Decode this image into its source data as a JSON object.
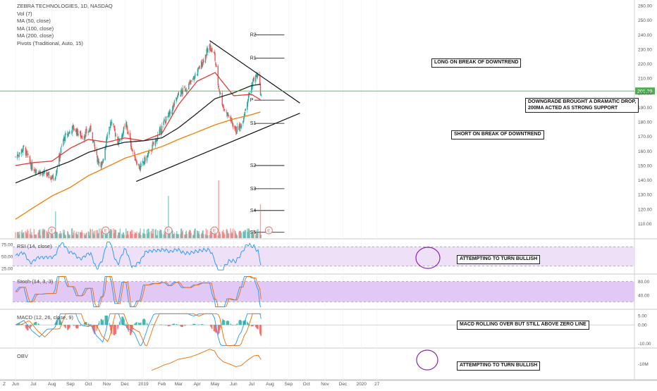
{
  "legend": {
    "symbol": "ZEBRA TECHNOLOGIES, 1D, NASDAQ",
    "vol": "Vol (7)",
    "ma50": "MA (50, close)",
    "ma100": "MA (100, close)",
    "ma200": "MA (200, close)",
    "pivots": "Pivots (Traditional, Auto, 15)"
  },
  "pane_labels": {
    "rsi": "RSI (14, close)",
    "stoch": "Stoch (14, 3, 3)",
    "macd": "MACD (12, 26, close, 9)",
    "obv": "OBV"
  },
  "annotations": {
    "long": "LONG ON BREAK OF DOWNTREND",
    "downgrade_line1": "DOWNGRADE BROUGHT A DRAMATIC DROP,",
    "downgrade_line2": "200MA ACTED AS STRONG SUPPORT",
    "short": "SHORT ON BREAK OF DOWNTREND",
    "rsi_note": "ATTEMPTING TO TURN BULLISH",
    "macd_note": "MACD ROLLING OVER BUT STILL ABOVE ZERO LINE",
    "obv_note": "ATTEMPTING TO TURN BULLISH"
  },
  "price_badge": "201.29",
  "earnings_marker": "E",
  "footer_left": "Z",
  "colors": {
    "up": "#26a69a",
    "down": "#ef5350",
    "ma50": "#e53935",
    "ma100": "#222222",
    "ma200": "#f57c00",
    "rsi": "#2196f3",
    "rsi_band": "#ede0f7",
    "stoch_band": "#e1c8f5",
    "pivot_line": "#000000",
    "current_price": "#4caf50",
    "circle": "#8e24aa"
  },
  "chart_data": {
    "type": "candlestick",
    "x_tick_labels": [
      "Jun",
      "Jul",
      "Aug",
      "Sep",
      "Oct",
      "Nov",
      "Dec",
      "2019",
      "Feb",
      "Mar",
      "Apr",
      "May",
      "Jun",
      "Jul",
      "Aug",
      "Sep",
      "Oct",
      "Nov",
      "Dec",
      "2020",
      "27"
    ],
    "price_axis": {
      "ticks": [
        100,
        110,
        120,
        130,
        140,
        150,
        160,
        170,
        180,
        190,
        200,
        210,
        220,
        230,
        240,
        250,
        260
      ],
      "ylim": [
        100,
        262
      ]
    },
    "current_price": 201.29,
    "pivots": [
      {
        "label": "R2",
        "value": 240
      },
      {
        "label": "R1",
        "value": 224
      },
      {
        "label": "P",
        "value": 195
      },
      {
        "label": "S1",
        "value": 179
      },
      {
        "label": "S2",
        "value": 150
      },
      {
        "label": "S3",
        "value": 134
      },
      {
        "label": "S4",
        "value": 119
      },
      {
        "label": "S5",
        "value": 104
      }
    ],
    "price_anchors": [
      [
        "2018-06-01",
        156
      ],
      [
        "2018-06-15",
        162
      ],
      [
        "2018-06-28",
        149
      ],
      [
        "2018-07-15",
        145
      ],
      [
        "2018-08-05",
        141
      ],
      [
        "2018-08-10",
        150
      ],
      [
        "2018-08-20",
        168
      ],
      [
        "2018-09-05",
        176
      ],
      [
        "2018-09-20",
        170
      ],
      [
        "2018-10-05",
        175
      ],
      [
        "2018-10-15",
        155
      ],
      [
        "2018-10-25",
        150
      ],
      [
        "2018-11-01",
        172
      ],
      [
        "2018-11-08",
        180
      ],
      [
        "2018-11-20",
        166
      ],
      [
        "2018-12-03",
        178
      ],
      [
        "2018-12-15",
        158
      ],
      [
        "2018-12-26",
        148
      ],
      [
        "2019-01-10",
        158
      ],
      [
        "2019-01-25",
        170
      ],
      [
        "2019-02-05",
        180
      ],
      [
        "2019-02-15",
        186
      ],
      [
        "2019-02-28",
        198
      ],
      [
        "2019-03-10",
        202
      ],
      [
        "2019-03-20",
        206
      ],
      [
        "2019-04-01",
        214
      ],
      [
        "2019-04-15",
        226
      ],
      [
        "2019-04-22",
        232
      ],
      [
        "2019-04-30",
        226
      ],
      [
        "2019-05-06",
        206
      ],
      [
        "2019-05-15",
        190
      ],
      [
        "2019-05-25",
        183
      ],
      [
        "2019-06-05",
        174
      ],
      [
        "2019-06-14",
        178
      ],
      [
        "2019-06-24",
        195
      ],
      [
        "2019-07-05",
        210
      ],
      [
        "2019-07-12",
        212
      ],
      [
        "2019-07-17",
        198
      ]
    ],
    "moving_averages": [
      {
        "name": "MA (50, close)",
        "values": [
          [
            "2018-06-01",
            150
          ],
          [
            "2018-07-01",
            152
          ],
          [
            "2018-08-01",
            153
          ],
          [
            "2018-09-01",
            162
          ],
          [
            "2018-10-01",
            168
          ],
          [
            "2018-11-01",
            166
          ],
          [
            "2018-12-01",
            169
          ],
          [
            "2019-01-01",
            167
          ],
          [
            "2019-02-01",
            172
          ],
          [
            "2019-03-01",
            192
          ],
          [
            "2019-04-01",
            208
          ],
          [
            "2019-05-01",
            214
          ],
          [
            "2019-06-01",
            198
          ],
          [
            "2019-07-01",
            199
          ],
          [
            "2019-07-17",
            195
          ]
        ]
      },
      {
        "name": "MA (100, close)",
        "values": [
          [
            "2018-06-01",
            138
          ],
          [
            "2018-07-01",
            143
          ],
          [
            "2018-08-01",
            148
          ],
          [
            "2018-09-01",
            153
          ],
          [
            "2018-10-01",
            159
          ],
          [
            "2018-11-01",
            163
          ],
          [
            "2018-12-01",
            166
          ],
          [
            "2019-01-01",
            167
          ],
          [
            "2019-02-01",
            169
          ],
          [
            "2019-03-01",
            176
          ],
          [
            "2019-04-01",
            186
          ],
          [
            "2019-05-01",
            196
          ],
          [
            "2019-06-01",
            200
          ],
          [
            "2019-07-01",
            205
          ],
          [
            "2019-07-17",
            206
          ]
        ]
      },
      {
        "name": "MA (200, close)",
        "values": [
          [
            "2018-06-01",
            113
          ],
          [
            "2018-07-01",
            121
          ],
          [
            "2018-08-01",
            129
          ],
          [
            "2018-09-01",
            135
          ],
          [
            "2018-10-01",
            143
          ],
          [
            "2018-11-01",
            149
          ],
          [
            "2018-12-01",
            155
          ],
          [
            "2019-01-01",
            159
          ],
          [
            "2019-02-01",
            163
          ],
          [
            "2019-03-01",
            168
          ],
          [
            "2019-04-01",
            173
          ],
          [
            "2019-05-01",
            178
          ],
          [
            "2019-06-01",
            182
          ],
          [
            "2019-07-01",
            185
          ],
          [
            "2019-07-17",
            187
          ]
        ]
      }
    ],
    "trendlines": [
      {
        "name": "downtrend",
        "from": [
          "2019-04-22",
          236
        ],
        "to": [
          "2019-09-20",
          193
        ]
      },
      {
        "name": "uptrend",
        "from": [
          "2018-12-20",
          139
        ],
        "to": [
          "2019-09-20",
          186
        ]
      }
    ],
    "rsi": {
      "ticks": [
        25.0,
        50.0,
        75.0
      ],
      "band": [
        30,
        70
      ],
      "ylim": [
        15,
        85
      ]
    },
    "stoch": {
      "ticks": [
        40.0,
        80.0
      ],
      "band": [
        20,
        80
      ],
      "ylim": [
        0,
        100
      ]
    },
    "macd": {
      "ticks": [
        -10.0,
        0.0,
        5.0
      ],
      "ylim": [
        -12,
        8
      ]
    },
    "obv": {
      "ticks": [
        "-10M"
      ]
    }
  }
}
